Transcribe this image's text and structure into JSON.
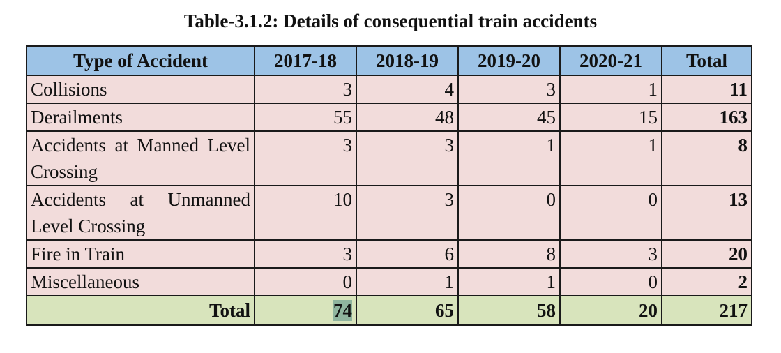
{
  "title": "Table-3.1.2: Details of consequential train accidents",
  "table": {
    "headers": [
      "Type of Accident",
      "2017-18",
      "2018-19",
      "2019-20",
      "2020-21",
      "Total"
    ],
    "rows": [
      {
        "type": "Collisions",
        "values": [
          "3",
          "4",
          "3",
          "1"
        ],
        "total": "11"
      },
      {
        "type": "Derailments",
        "values": [
          "55",
          "48",
          "45",
          "15"
        ],
        "total": "163"
      },
      {
        "type": "Accidents at Manned Level Crossing",
        "values": [
          "3",
          "3",
          "1",
          "1"
        ],
        "total": "8"
      },
      {
        "type": "Accidents at Unmanned Level Crossing",
        "values": [
          "10",
          "3",
          "0",
          "0"
        ],
        "total": "13"
      },
      {
        "type": "Fire in Train",
        "values": [
          "3",
          "6",
          "8",
          "3"
        ],
        "total": "20"
      },
      {
        "type": "Miscellaneous",
        "values": [
          "0",
          "1",
          "1",
          "0"
        ],
        "total": "2"
      }
    ],
    "footer": {
      "label": "Total",
      "values": [
        "74",
        "65",
        "58",
        "20"
      ],
      "total": "217"
    }
  },
  "colors": {
    "header_bg": "#9dc3e6",
    "row_bg": "#f2dcdb",
    "footer_bg": "#d8e4bc",
    "highlight": "#8fb49e"
  }
}
